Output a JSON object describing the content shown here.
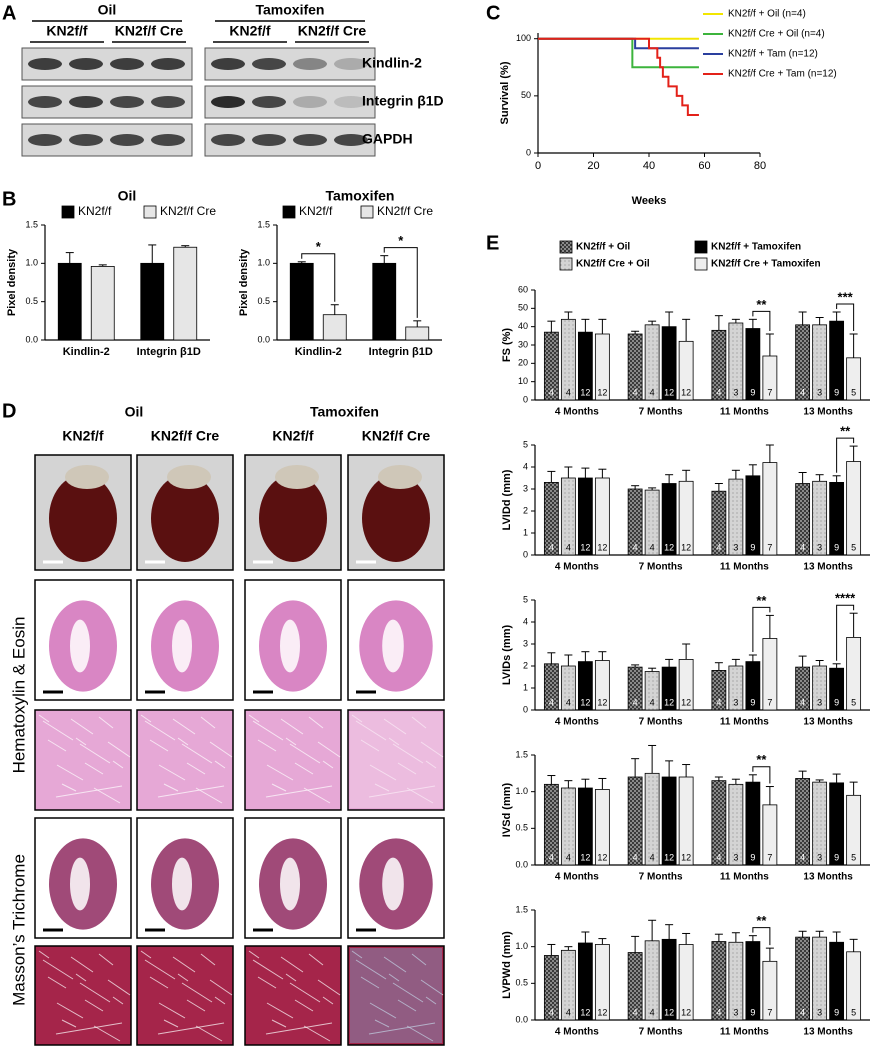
{
  "panel_labels": [
    "A",
    "B",
    "C",
    "D",
    "E"
  ],
  "blot": {
    "groups": [
      {
        "title": "Oil",
        "columns": [
          "KN2f/f",
          "KN2f/f Cre"
        ]
      },
      {
        "title": "Tamoxifen",
        "columns": [
          "KN2f/f",
          "KN2f/f Cre"
        ]
      }
    ],
    "rows": [
      "Kindlin-2",
      "Integrin β1D",
      "GAPDH"
    ]
  },
  "histology": {
    "groups": [
      {
        "title": "Oil",
        "columns": [
          "KN2f/f",
          "KN2f/f Cre"
        ]
      },
      {
        "title": "Tamoxifen",
        "columns": [
          "KN2f/f",
          "KN2f/f Cre"
        ]
      }
    ],
    "rows": [
      "Hematoxylin & Eosin",
      "Masson’s Trichrome"
    ]
  },
  "chart_data": [
    {
      "type": "bar",
      "title": "Oil",
      "ylabel": "Pixel density",
      "categories": [
        "Kindlin-2",
        "Integrin β1D"
      ],
      "series": [
        {
          "name": "KN2f/f",
          "color": "#000000",
          "values": [
            1.0,
            1.0
          ],
          "errors": [
            0.14,
            0.24
          ]
        },
        {
          "name": "KN2f/f Cre",
          "color": "#e6e6e6",
          "values": [
            0.96,
            1.21
          ],
          "errors": [
            0.02,
            0.02
          ]
        }
      ],
      "ylim": [
        0,
        1.5
      ],
      "yticks": [
        {
          "value": 0,
          "label": "0.0"
        },
        0.5,
        {
          "value": 1,
          "label": "1.0"
        },
        1.5
      ]
    },
    {
      "type": "bar",
      "title": "Tamoxifen",
      "ylabel": "Pixel density",
      "categories": [
        "Kindlin-2",
        "Integrin β1D"
      ],
      "series": [
        {
          "name": "KN2f/f",
          "color": "#000000",
          "values": [
            1.0,
            1.0
          ],
          "errors": [
            0.02,
            0.1
          ]
        },
        {
          "name": "KN2f/f Cre",
          "color": "#e6e6e6",
          "values": [
            0.33,
            0.17
          ],
          "errors": [
            0.13,
            0.08
          ],
          "significance": [
            "*",
            "*"
          ]
        }
      ],
      "ylim": [
        0,
        1.5
      ],
      "yticks": [
        {
          "value": 0,
          "label": "0.0"
        },
        0.5,
        {
          "value": 1,
          "label": "1.0"
        },
        1.5
      ]
    },
    {
      "type": "line",
      "xlabel": "Weeks",
      "ylabel": "Survival (%)",
      "series": [
        {
          "name": "KN2f/f + Oil (n=4)",
          "color": "#f2e600",
          "x": [
            0,
            58
          ],
          "values": [
            100,
            100
          ]
        },
        {
          "name": "KN2f/f Cre + Oil (n=4)",
          "color": "#3cb43c",
          "x": [
            0,
            34,
            34,
            58
          ],
          "values": [
            100,
            100,
            75,
            75
          ]
        },
        {
          "name": "KN2f/f + Tam (n=12)",
          "color": "#2a3f9e",
          "x": [
            0,
            35,
            35,
            58
          ],
          "values": [
            100,
            100,
            91.7,
            91.7
          ]
        },
        {
          "name": "KN2f/f Cre + Tam (n=12)",
          "color": "#e32119",
          "x": [
            0,
            40,
            40,
            43,
            43,
            44,
            44,
            45,
            45,
            47,
            47,
            50,
            50,
            52,
            52,
            54,
            54,
            58
          ],
          "values": [
            100,
            100,
            91.7,
            91.7,
            83.3,
            83.3,
            75,
            75,
            66.7,
            66.7,
            58.3,
            58.3,
            50,
            50,
            41.7,
            41.7,
            33.3,
            33.3
          ]
        }
      ],
      "xlim": [
        0,
        80
      ],
      "xticks": [
        0,
        20,
        40,
        60,
        80
      ],
      "ylim": [
        0,
        105
      ],
      "yticks": [
        0,
        50,
        100
      ]
    },
    {
      "type": "bar",
      "ylabel": "FS (%)",
      "categories": [
        "4 Months",
        "7 Months",
        "11 Months",
        "13 Months"
      ],
      "series": [
        {
          "name": "KN2f/f + Oil",
          "color": "#3a3a3a",
          "pattern": "checker",
          "values": [
            37,
            36,
            38,
            41
          ],
          "errors": [
            6,
            1.5,
            8,
            7
          ],
          "n": [
            4,
            4,
            4,
            4
          ]
        },
        {
          "name": "KN2f/f Cre + Oil",
          "color": "#d4d4d4",
          "pattern": "dots",
          "values": [
            44,
            41,
            42,
            41
          ],
          "errors": [
            4,
            2,
            2,
            4
          ],
          "n": [
            4,
            4,
            3,
            3
          ]
        },
        {
          "name": "KN2f/f + Tamoxifen",
          "color": "#000000",
          "values": [
            37,
            40,
            39,
            43
          ],
          "errors": [
            7,
            8,
            5,
            5
          ],
          "n": [
            12,
            12,
            9,
            9
          ]
        },
        {
          "name": "KN2f/f Cre + Tamoxifen",
          "color": "#eeeeee",
          "values": [
            36,
            32,
            24,
            23
          ],
          "errors": [
            8,
            12,
            12,
            13
          ],
          "n": [
            12,
            12,
            7,
            5
          ],
          "significance": [
            null,
            null,
            "**",
            "***"
          ]
        }
      ],
      "ylim": [
        0,
        60
      ],
      "yticks": [
        0,
        10,
        20,
        30,
        40,
        50,
        60
      ]
    },
    {
      "type": "bar",
      "ylabel": "LVIDd (mm)",
      "categories": [
        "4 Months",
        "7 Months",
        "11 Months",
        "13 Months"
      ],
      "series": [
        {
          "color": "#3a3a3a",
          "pattern": "checker",
          "values": [
            3.3,
            3.0,
            2.9,
            3.25
          ],
          "errors": [
            0.5,
            0.15,
            0.35,
            0.5
          ],
          "n": [
            4,
            4,
            4,
            4
          ]
        },
        {
          "color": "#d4d4d4",
          "pattern": "dots",
          "values": [
            3.5,
            2.95,
            3.45,
            3.35
          ],
          "errors": [
            0.5,
            0.1,
            0.4,
            0.3
          ],
          "n": [
            4,
            4,
            3,
            3
          ]
        },
        {
          "color": "#000000",
          "values": [
            3.5,
            3.25,
            3.6,
            3.3
          ],
          "errors": [
            0.45,
            0.4,
            0.5,
            0.3
          ],
          "n": [
            12,
            12,
            9,
            9
          ]
        },
        {
          "color": "#eeeeee",
          "values": [
            3.5,
            3.35,
            4.2,
            4.25
          ],
          "errors": [
            0.4,
            0.5,
            0.8,
            0.7
          ],
          "n": [
            12,
            12,
            7,
            5
          ],
          "significance": [
            null,
            null,
            null,
            "**"
          ]
        }
      ],
      "ylim": [
        0,
        5
      ],
      "yticks": [
        0,
        1,
        2,
        3,
        4,
        5
      ]
    },
    {
      "type": "bar",
      "ylabel": "LVIDs (mm)",
      "categories": [
        "4 Months",
        "7 Months",
        "11 Months",
        "13 Months"
      ],
      "series": [
        {
          "color": "#3a3a3a",
          "pattern": "checker",
          "values": [
            2.1,
            1.95,
            1.8,
            1.95
          ],
          "errors": [
            0.5,
            0.1,
            0.35,
            0.5
          ],
          "n": [
            4,
            4,
            4,
            4
          ]
        },
        {
          "color": "#d4d4d4",
          "pattern": "dots",
          "values": [
            2.0,
            1.75,
            2.0,
            2.0
          ],
          "errors": [
            0.5,
            0.15,
            0.3,
            0.25
          ],
          "n": [
            4,
            4,
            3,
            3
          ]
        },
        {
          "color": "#000000",
          "values": [
            2.2,
            1.95,
            2.2,
            1.9
          ],
          "errors": [
            0.45,
            0.35,
            0.3,
            0.2
          ],
          "n": [
            12,
            12,
            9,
            9
          ]
        },
        {
          "color": "#eeeeee",
          "values": [
            2.25,
            2.3,
            3.25,
            3.3
          ],
          "errors": [
            0.4,
            0.7,
            1.05,
            1.1
          ],
          "n": [
            12,
            12,
            7,
            5
          ],
          "significance": [
            null,
            null,
            "**",
            "****"
          ]
        }
      ],
      "ylim": [
        0,
        5
      ],
      "yticks": [
        0,
        1,
        2,
        3,
        4,
        5
      ]
    },
    {
      "type": "bar",
      "ylabel": "IVSd (mm)",
      "categories": [
        "4 Months",
        "7 Months",
        "11 Months",
        "13 Months"
      ],
      "series": [
        {
          "color": "#3a3a3a",
          "pattern": "checker",
          "values": [
            1.1,
            1.2,
            1.15,
            1.18
          ],
          "errors": [
            0.12,
            0.25,
            0.05,
            0.1
          ],
          "n": [
            4,
            4,
            4,
            4
          ]
        },
        {
          "color": "#d4d4d4",
          "pattern": "dots",
          "values": [
            1.05,
            1.25,
            1.1,
            1.13
          ],
          "errors": [
            0.1,
            0.38,
            0.07,
            0.03
          ],
          "n": [
            4,
            4,
            3,
            3
          ]
        },
        {
          "color": "#000000",
          "values": [
            1.05,
            1.2,
            1.13,
            1.12
          ],
          "errors": [
            0.12,
            0.22,
            0.1,
            0.12
          ],
          "n": [
            12,
            12,
            9,
            9
          ]
        },
        {
          "color": "#eeeeee",
          "values": [
            1.03,
            1.2,
            0.82,
            0.95
          ],
          "errors": [
            0.15,
            0.17,
            0.25,
            0.18
          ],
          "n": [
            12,
            12,
            7,
            5
          ],
          "significance": [
            null,
            null,
            "**",
            null
          ]
        }
      ],
      "ylim": [
        0,
        1.5
      ],
      "yticks": [
        {
          "value": 0,
          "label": "0.0"
        },
        0.5,
        {
          "value": 1,
          "label": "1.0"
        },
        1.5
      ]
    },
    {
      "type": "bar",
      "ylabel": "LVPWd (mm)",
      "categories": [
        "4 Months",
        "7 Months",
        "11 Months",
        "13 Months"
      ],
      "series": [
        {
          "color": "#3a3a3a",
          "pattern": "checker",
          "values": [
            0.88,
            0.92,
            1.07,
            1.13
          ],
          "errors": [
            0.15,
            0.22,
            0.1,
            0.08
          ],
          "n": [
            4,
            4,
            4,
            4
          ]
        },
        {
          "color": "#d4d4d4",
          "pattern": "dots",
          "values": [
            0.95,
            1.08,
            1.06,
            1.13
          ],
          "errors": [
            0.05,
            0.28,
            0.13,
            0.08
          ],
          "n": [
            4,
            4,
            3,
            3
          ]
        },
        {
          "color": "#000000",
          "values": [
            1.05,
            1.1,
            1.07,
            1.06
          ],
          "errors": [
            0.15,
            0.2,
            0.08,
            0.14
          ],
          "n": [
            12,
            12,
            9,
            9
          ]
        },
        {
          "color": "#eeeeee",
          "values": [
            1.03,
            1.03,
            0.8,
            0.93
          ],
          "errors": [
            0.08,
            0.15,
            0.18,
            0.17
          ],
          "n": [
            12,
            12,
            7,
            5
          ],
          "significance": [
            null,
            null,
            "**",
            null
          ]
        }
      ],
      "ylim": [
        0,
        1.5
      ],
      "yticks": [
        {
          "value": 0,
          "label": "0.0"
        },
        0.5,
        {
          "value": 1,
          "label": "1.0"
        },
        1.5
      ]
    }
  ]
}
